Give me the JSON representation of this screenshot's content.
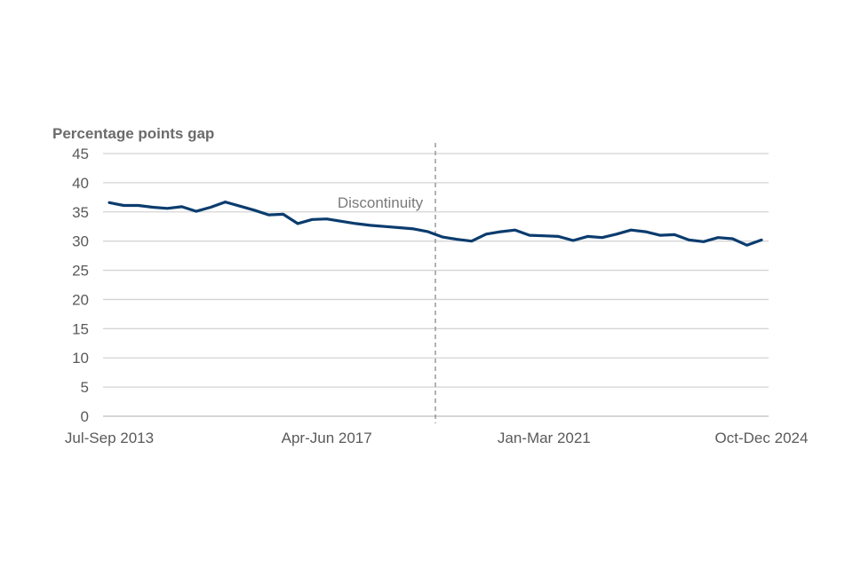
{
  "chart_data": {
    "type": "line",
    "ylabel": "Percentage points gap",
    "ylim": [
      0,
      45
    ],
    "yticks": [
      0,
      5,
      10,
      15,
      20,
      25,
      30,
      35,
      40,
      45
    ],
    "grid": true,
    "x_tick_labels": [
      "Jul-Sep 2013",
      "Apr-Jun 2017",
      "Jan-Mar 2021",
      "Oct-Dec 2024"
    ],
    "x_tick_indices": [
      0,
      15,
      30,
      45
    ],
    "annotation": {
      "label": "Discontinuity",
      "x_index": 23
    },
    "x": [
      "Jul-Sep 2013",
      "Oct-Dec 2013",
      "Jan-Mar 2014",
      "Apr-Jun 2014",
      "Jul-Sep 2014",
      "Oct-Dec 2014",
      "Jan-Mar 2015",
      "Apr-Jun 2015",
      "Jul-Sep 2015",
      "Oct-Dec 2015",
      "Jan-Mar 2016",
      "Apr-Jun 2016",
      "Jul-Sep 2016",
      "Oct-Dec 2016",
      "Jan-Mar 2017",
      "Apr-Jun 2017",
      "Jul-Sep 2017",
      "Oct-Dec 2017",
      "Jan-Mar 2018",
      "Apr-Jun 2018",
      "Jul-Sep 2018",
      "Oct-Dec 2018",
      "Jan-Mar 2019",
      "Apr-Jun 2019",
      "Jul-Sep 2019",
      "Oct-Dec 2019",
      "Jan-Mar 2020",
      "Apr-Jun 2020",
      "Jul-Sep 2020",
      "Oct-Dec 2020",
      "Jan-Mar 2021",
      "Apr-Jun 2021",
      "Jul-Sep 2021",
      "Oct-Dec 2021",
      "Jan-Mar 2022",
      "Apr-Jun 2022",
      "Jul-Sep 2022",
      "Oct-Dec 2022",
      "Jan-Mar 2023",
      "Apr-Jun 2023",
      "Jul-Sep 2023",
      "Oct-Dec 2023",
      "Jan-Mar 2024",
      "Apr-Jun 2024",
      "Jul-Sep 2024",
      "Oct-Dec 2024"
    ],
    "series": [
      {
        "color": "#0b3c6e",
        "values": [
          36.6,
          36.1,
          36.1,
          35.8,
          35.6,
          35.9,
          35.1,
          35.8,
          36.7,
          36.0,
          35.3,
          34.5,
          34.6,
          33.0,
          33.7,
          33.8,
          33.4,
          33.0,
          32.7,
          32.5,
          32.3,
          32.1,
          31.6,
          30.7,
          30.3,
          30.0,
          31.2,
          31.6,
          31.9,
          31.0,
          30.9,
          30.8,
          30.1,
          30.8,
          30.6,
          31.2,
          31.9,
          31.6,
          31.0,
          31.1,
          30.2,
          29.9,
          30.6,
          30.4,
          29.3,
          30.2
        ]
      }
    ]
  }
}
